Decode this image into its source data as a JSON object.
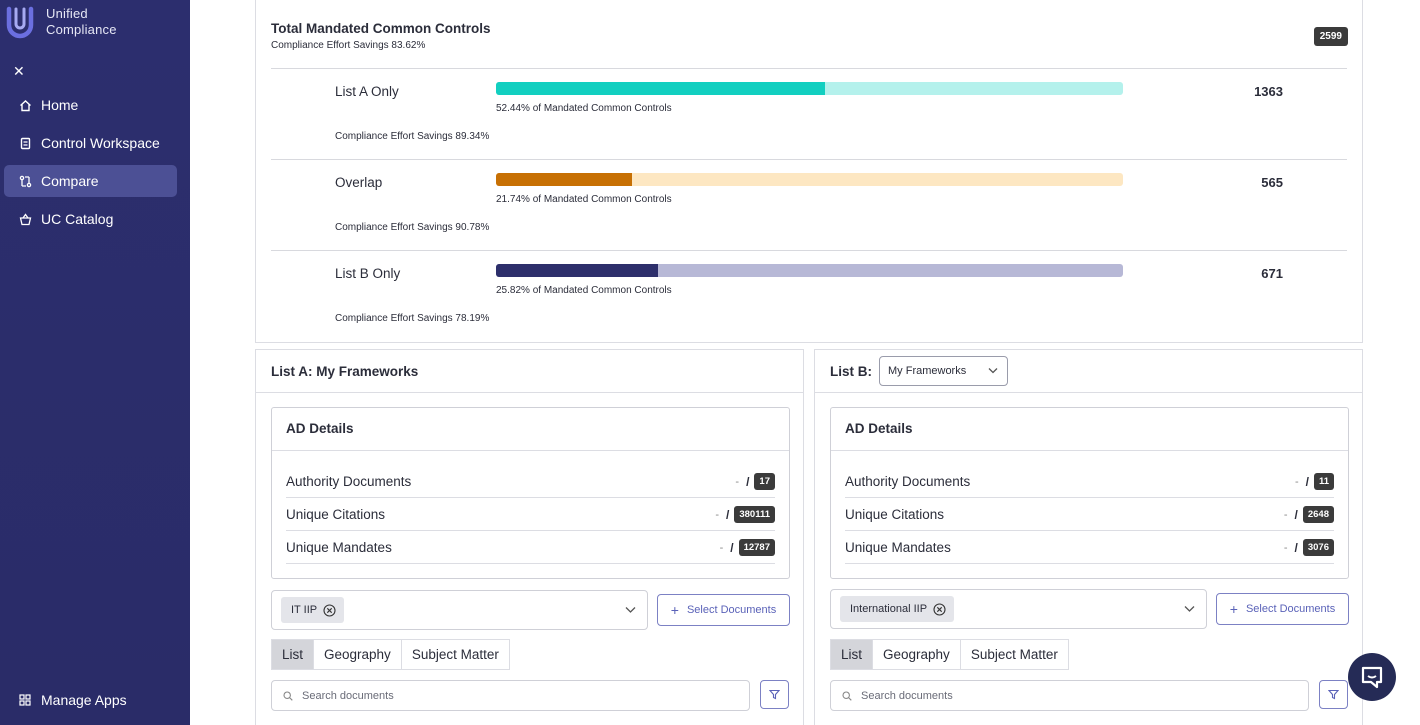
{
  "brand": {
    "name": "Unified Compliance"
  },
  "sidebar": {
    "items": [
      {
        "label": "Home",
        "icon": "home-icon"
      },
      {
        "label": "Control Workspace",
        "icon": "workspace-icon"
      },
      {
        "label": "Compare",
        "icon": "compare-icon",
        "active": true
      },
      {
        "label": "UC Catalog",
        "icon": "catalog-icon"
      }
    ],
    "manage": "Manage Apps"
  },
  "summary": {
    "title": "Total Mandated Common Controls",
    "subtitle": "Compliance Effort Savings 83.62%",
    "total": "2599",
    "rows": [
      {
        "label": "List A Only",
        "pct_text": "52.44% of Mandated Common Controls",
        "pct": 52.44,
        "count": "1363",
        "savings": "Compliance Effort Savings 89.34%",
        "fill": "#12cfc0",
        "track": "#b4f1ec"
      },
      {
        "label": "Overlap",
        "pct_text": "21.74% of Mandated Common Controls",
        "pct": 21.74,
        "count": "565",
        "savings": "Compliance Effort Savings 90.78%",
        "fill": "#c77004",
        "track": "#fde7c2"
      },
      {
        "label": "List B Only",
        "pct_text": "25.82% of Mandated Common Controls",
        "pct": 25.82,
        "count": "671",
        "savings": "Compliance Effort Savings 78.19%",
        "fill": "#2d2f6b",
        "track": "#b7b8d6"
      }
    ]
  },
  "listA": {
    "title": "List A: My Frameworks",
    "ad_title": "AD Details",
    "rows": [
      {
        "label": "Authority Documents",
        "dash": "-",
        "value": "17"
      },
      {
        "label": "Unique Citations",
        "dash": "-",
        "value": "380111"
      },
      {
        "label": "Unique Mandates",
        "dash": "-",
        "value": "12787"
      }
    ],
    "chip": "IT IIP",
    "select_docs": "Select Documents",
    "tabs": [
      "List",
      "Geography",
      "Subject Matter"
    ],
    "search_placeholder": "Search documents"
  },
  "listB": {
    "title": "List B:",
    "dropdown": "My Frameworks",
    "ad_title": "AD Details",
    "rows": [
      {
        "label": "Authority Documents",
        "dash": "-",
        "value": "11"
      },
      {
        "label": "Unique Citations",
        "dash": "-",
        "value": "2648"
      },
      {
        "label": "Unique Mandates",
        "dash": "-",
        "value": "3076"
      }
    ],
    "chip": "International IIP",
    "select_docs": "Select Documents",
    "tabs": [
      "List",
      "Geography",
      "Subject Matter"
    ],
    "search_placeholder": "Search documents"
  }
}
